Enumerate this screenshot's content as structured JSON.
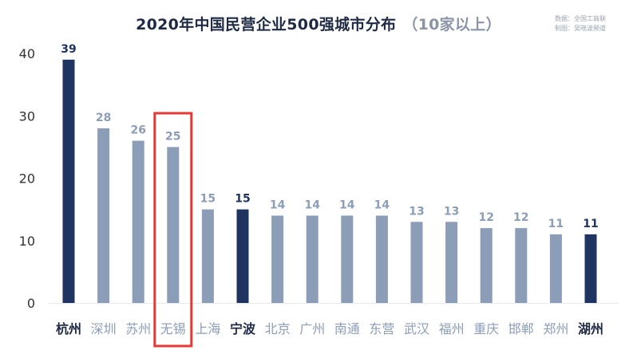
{
  "title": {
    "main": "2020年中国民营企业500强城市分布",
    "sub": "（10家以上）"
  },
  "source": {
    "line1": "数据：全国工商联",
    "line2": "制图：吴晓波频道"
  },
  "colors": {
    "highlight_bar": "#1f3461",
    "normal_bar": "#8c9db8",
    "highlight_label": "#1f3461",
    "normal_label": "#8c9db8",
    "callout_box": "#e53935",
    "axis_text": "#333333"
  },
  "chart_data": {
    "type": "bar",
    "title": "2020年中国民营企业500强城市分布（10家以上）",
    "categories": [
      "杭州",
      "深圳",
      "苏州",
      "无锡",
      "上海",
      "宁波",
      "北京",
      "广州",
      "南通",
      "东营",
      "武汉",
      "福州",
      "重庆",
      "邯郸",
      "郑州",
      "湖州"
    ],
    "values": [
      39,
      28,
      26,
      25,
      15,
      15,
      14,
      14,
      14,
      14,
      13,
      13,
      12,
      12,
      11,
      11
    ],
    "highlighted": [
      "杭州",
      "宁波",
      "湖州"
    ],
    "boxed": "无锡",
    "ylim": [
      0,
      40
    ],
    "yticks": [
      0,
      10,
      20,
      30,
      40
    ],
    "grid": false,
    "xlabel": "",
    "ylabel": ""
  }
}
